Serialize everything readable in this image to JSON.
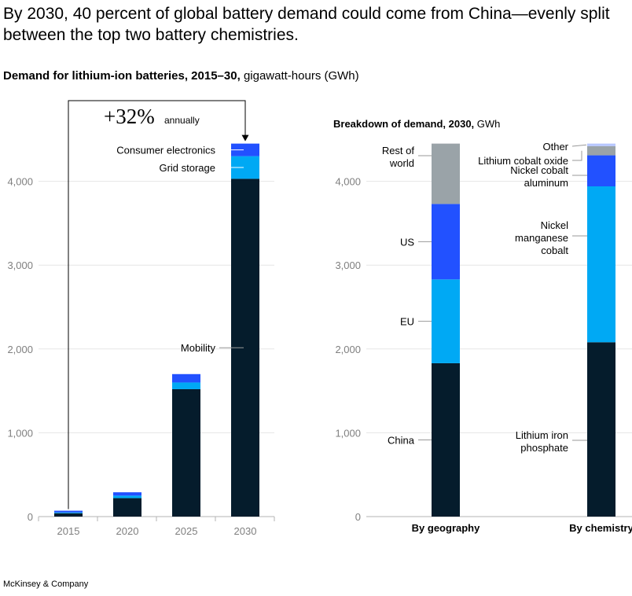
{
  "headline": "By 2030, 40 percent of global battery demand could come from China—evenly split between the top two battery chemistries.",
  "subtitle": {
    "bold": "Demand for lithium-ion batteries, 2015–30,",
    "unit": "gigawatt-hours (GWh)"
  },
  "footer": "McKinsey & Company",
  "colors": {
    "mobility": "#051c2c",
    "grid_storage": "#00a9f4",
    "consumer_electronics": "#2251ff",
    "other": "#9aa3a8",
    "gridline": "#e6e6e6",
    "axis": "#b3b3b3"
  },
  "chart_data": [
    {
      "type": "bar",
      "stacked": true,
      "categories": [
        "2015",
        "2020",
        "2025",
        "2030"
      ],
      "series": [
        {
          "name": "Mobility",
          "values": [
            40,
            220,
            1520,
            4030
          ],
          "color": "#051c2c"
        },
        {
          "name": "Grid storage",
          "values": [
            10,
            30,
            80,
            270
          ],
          "color": "#00a9f4"
        },
        {
          "name": "Consumer electronics",
          "values": [
            20,
            40,
            100,
            150
          ],
          "color": "#2251ff"
        }
      ],
      "yticks": [
        "0",
        "1,000",
        "2,000",
        "3,000",
        "4,000"
      ],
      "ylim": [
        0,
        4700
      ],
      "grid": true,
      "annotation": {
        "value": "+32%",
        "text": "annually"
      }
    },
    {
      "type": "bar",
      "stacked": true,
      "title": "Breakdown of demand, 2030,",
      "title_unit": "GWh",
      "categories": [
        "By geography",
        "By chemistry"
      ],
      "bars": [
        {
          "category": "By geography",
          "segments": [
            {
              "name": "China",
              "value": 1830,
              "color": "#051c2c"
            },
            {
              "name": "EU",
              "value": 1000,
              "color": "#00a9f4"
            },
            {
              "name": "US",
              "value": 900,
              "color": "#2251ff"
            },
            {
              "name": "Rest of world",
              "value": 720,
              "color": "#9aa3a8"
            }
          ]
        },
        {
          "category": "By chemistry",
          "segments": [
            {
              "name": "Lithium iron phosphate",
              "value": 2080,
              "color": "#051c2c"
            },
            {
              "name": "Nickel manganese cobalt",
              "value": 1860,
              "color": "#00a9f4"
            },
            {
              "name": "Nickel cobalt aluminum",
              "value": 370,
              "color": "#2251ff"
            },
            {
              "name": "Lithium cobalt oxide",
              "value": 110,
              "color": "#9aa3a8"
            },
            {
              "name": "Other",
              "value": 30,
              "color": "#b7c7ff"
            }
          ]
        }
      ],
      "yticks": [
        "0",
        "1,000",
        "2,000",
        "3,000",
        "4,000"
      ],
      "ylim": [
        0,
        4700
      ],
      "grid": true
    }
  ]
}
